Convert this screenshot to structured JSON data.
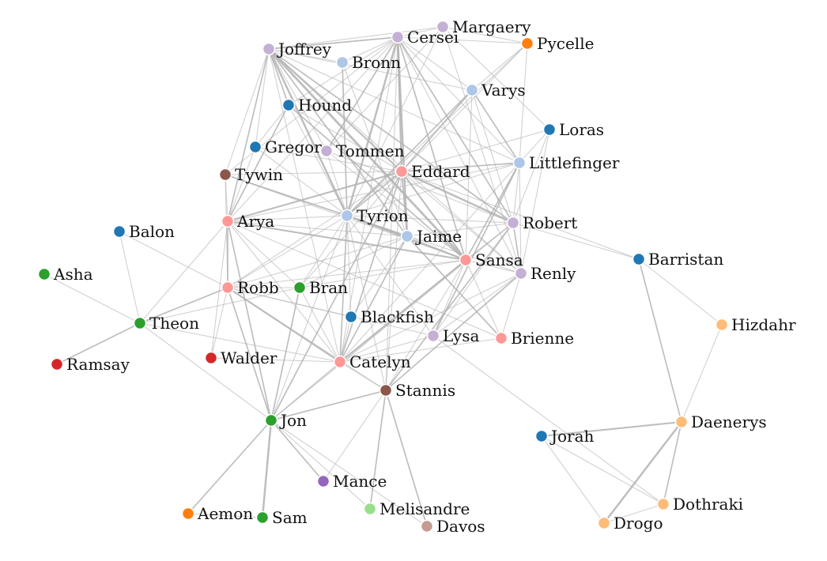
{
  "diagram": {
    "type": "force-directed network",
    "nodes": [
      {
        "id": "Margaery",
        "color": "#c5b0d5"
      },
      {
        "id": "Cersei",
        "color": "#c5b0d5"
      },
      {
        "id": "Pycelle",
        "color": "#ff7f0e"
      },
      {
        "id": "Joffrey",
        "color": "#c5b0d5"
      },
      {
        "id": "Bronn",
        "color": "#aec7e8"
      },
      {
        "id": "Varys",
        "color": "#aec7e8"
      },
      {
        "id": "Hound",
        "color": "#1f77b4"
      },
      {
        "id": "Loras",
        "color": "#1f77b4"
      },
      {
        "id": "Gregor",
        "color": "#1f77b4"
      },
      {
        "id": "Tommen",
        "color": "#c5b0d5"
      },
      {
        "id": "Littlefinger",
        "color": "#aec7e8"
      },
      {
        "id": "Tywin",
        "color": "#8c564b"
      },
      {
        "id": "Eddard",
        "color": "#ff9896"
      },
      {
        "id": "Tyrion",
        "color": "#aec7e8"
      },
      {
        "id": "Arya",
        "color": "#ff9896"
      },
      {
        "id": "Robert",
        "color": "#c5b0d5"
      },
      {
        "id": "Balon",
        "color": "#1f77b4"
      },
      {
        "id": "Jaime",
        "color": "#aec7e8"
      },
      {
        "id": "Sansa",
        "color": "#ff9896"
      },
      {
        "id": "Barristan",
        "color": "#1f77b4"
      },
      {
        "id": "Renly",
        "color": "#c5b0d5"
      },
      {
        "id": "Asha",
        "color": "#2ca02c"
      },
      {
        "id": "Robb",
        "color": "#ff9896"
      },
      {
        "id": "Bran",
        "color": "#2ca02c"
      },
      {
        "id": "Blackfish",
        "color": "#1f77b4"
      },
      {
        "id": "Theon",
        "color": "#2ca02c"
      },
      {
        "id": "Hizdahr",
        "color": "#ffbb78"
      },
      {
        "id": "Lysa",
        "color": "#c5b0d5"
      },
      {
        "id": "Brienne",
        "color": "#ff9896"
      },
      {
        "id": "Walder",
        "color": "#d62728"
      },
      {
        "id": "Catelyn",
        "color": "#ff9896"
      },
      {
        "id": "Ramsay",
        "color": "#d62728"
      },
      {
        "id": "Stannis",
        "color": "#8c564b"
      },
      {
        "id": "Daenerys",
        "color": "#ffbb78"
      },
      {
        "id": "Jon",
        "color": "#2ca02c"
      },
      {
        "id": "Jorah",
        "color": "#1f77b4"
      },
      {
        "id": "Mance",
        "color": "#9467bd"
      },
      {
        "id": "Dothraki",
        "color": "#ffbb78"
      },
      {
        "id": "Melisandre",
        "color": "#98df8a"
      },
      {
        "id": "Aemon",
        "color": "#ff7f0e"
      },
      {
        "id": "Sam",
        "color": "#2ca02c"
      },
      {
        "id": "Drogo",
        "color": "#ffbb78"
      },
      {
        "id": "Davos",
        "color": "#c49c94"
      }
    ],
    "links": [
      {
        "source": "Joffrey",
        "target": "Cersei",
        "weight": 2
      },
      {
        "source": "Cersei",
        "target": "Margaery",
        "weight": 1
      },
      {
        "source": "Cersei",
        "target": "Pycelle",
        "weight": 1
      },
      {
        "source": "Margaery",
        "target": "Pycelle",
        "weight": 1
      },
      {
        "source": "Joffrey",
        "target": "Margaery",
        "weight": 1
      },
      {
        "source": "Joffrey",
        "target": "Tyrion",
        "weight": 4
      },
      {
        "source": "Joffrey",
        "target": "Eddard",
        "weight": 3
      },
      {
        "source": "Joffrey",
        "target": "Sansa",
        "weight": 5
      },
      {
        "source": "Joffrey",
        "target": "Arya",
        "weight": 2
      },
      {
        "source": "Joffrey",
        "target": "Hound",
        "weight": 2
      },
      {
        "source": "Joffrey",
        "target": "Tywin",
        "weight": 1
      },
      {
        "source": "Joffrey",
        "target": "Robert",
        "weight": 2
      },
      {
        "source": "Joffrey",
        "target": "Jaime",
        "weight": 2
      },
      {
        "source": "Joffrey",
        "target": "Catelyn",
        "weight": 1
      },
      {
        "source": "Joffrey",
        "target": "Tommen",
        "weight": 1
      },
      {
        "source": "Joffrey",
        "target": "Renly",
        "weight": 1
      },
      {
        "source": "Joffrey",
        "target": "Littlefinger",
        "weight": 1
      },
      {
        "source": "Joffrey",
        "target": "Varys",
        "weight": 1
      },
      {
        "source": "Joffrey",
        "target": "Bronn",
        "weight": 1
      },
      {
        "source": "Joffrey",
        "target": "Gregor",
        "weight": 1
      },
      {
        "source": "Cersei",
        "target": "Tyrion",
        "weight": 4
      },
      {
        "source": "Cersei",
        "target": "Jaime",
        "weight": 4
      },
      {
        "source": "Cersei",
        "target": "Eddard",
        "weight": 3
      },
      {
        "source": "Cersei",
        "target": "Sansa",
        "weight": 2
      },
      {
        "source": "Cersei",
        "target": "Robert",
        "weight": 2
      },
      {
        "source": "Cersei",
        "target": "Tommen",
        "weight": 2
      },
      {
        "source": "Cersei",
        "target": "Varys",
        "weight": 1
      },
      {
        "source": "Cersei",
        "target": "Littlefinger",
        "weight": 1
      },
      {
        "source": "Cersei",
        "target": "Catelyn",
        "weight": 1
      },
      {
        "source": "Cersei",
        "target": "Arya",
        "weight": 1
      },
      {
        "source": "Cersei",
        "target": "Renly",
        "weight": 1
      },
      {
        "source": "Cersei",
        "target": "Stannis",
        "weight": 1
      },
      {
        "source": "Cersei",
        "target": "Bronn",
        "weight": 1
      },
      {
        "source": "Cersei",
        "target": "Tywin",
        "weight": 1
      },
      {
        "source": "Cersei",
        "target": "Hound",
        "weight": 1
      },
      {
        "source": "Margaery",
        "target": "Tommen",
        "weight": 1
      },
      {
        "source": "Margaery",
        "target": "Loras",
        "weight": 1
      },
      {
        "source": "Margaery",
        "target": "Renly",
        "weight": 1
      },
      {
        "source": "Margaery",
        "target": "Tyrion",
        "weight": 1
      },
      {
        "source": "Pycelle",
        "target": "Tyrion",
        "weight": 1
      },
      {
        "source": "Pycelle",
        "target": "Varys",
        "weight": 1
      },
      {
        "source": "Pycelle",
        "target": "Eddard",
        "weight": 1
      },
      {
        "source": "Pycelle",
        "target": "Littlefinger",
        "weight": 1
      },
      {
        "source": "Bronn",
        "target": "Tyrion",
        "weight": 2
      },
      {
        "source": "Bronn",
        "target": "Jaime",
        "weight": 1
      },
      {
        "source": "Varys",
        "target": "Tyrion",
        "weight": 2
      },
      {
        "source": "Varys",
        "target": "Eddard",
        "weight": 2
      },
      {
        "source": "Varys",
        "target": "Littlefinger",
        "weight": 2
      },
      {
        "source": "Varys",
        "target": "Robert",
        "weight": 1
      },
      {
        "source": "Varys",
        "target": "Sansa",
        "weight": 1
      },
      {
        "source": "Hound",
        "target": "Arya",
        "weight": 2
      },
      {
        "source": "Hound",
        "target": "Sansa",
        "weight": 2
      },
      {
        "source": "Hound",
        "target": "Tyrion",
        "weight": 1
      },
      {
        "source": "Hound",
        "target": "Gregor",
        "weight": 1
      },
      {
        "source": "Hound",
        "target": "Eddard",
        "weight": 1
      },
      {
        "source": "Loras",
        "target": "Renly",
        "weight": 1
      },
      {
        "source": "Loras",
        "target": "Littlefinger",
        "weight": 1
      },
      {
        "source": "Loras",
        "target": "Robert",
        "weight": 1
      },
      {
        "source": "Loras",
        "target": "Eddard",
        "weight": 1
      },
      {
        "source": "Gregor",
        "target": "Tyrion",
        "weight": 1
      },
      {
        "source": "Gregor",
        "target": "Eddard",
        "weight": 1
      },
      {
        "source": "Gregor",
        "target": "Arya",
        "weight": 1
      },
      {
        "source": "Tommen",
        "target": "Tyrion",
        "weight": 1
      },
      {
        "source": "Tommen",
        "target": "Robert",
        "weight": 1
      },
      {
        "source": "Tommen",
        "target": "Sansa",
        "weight": 1
      },
      {
        "source": "Littlefinger",
        "target": "Eddard",
        "weight": 2
      },
      {
        "source": "Littlefinger",
        "target": "Sansa",
        "weight": 2
      },
      {
        "source": "Littlefinger",
        "target": "Lysa",
        "weight": 2
      },
      {
        "source": "Littlefinger",
        "target": "Catelyn",
        "weight": 1
      },
      {
        "source": "Littlefinger",
        "target": "Tyrion",
        "weight": 1
      },
      {
        "source": "Littlefinger",
        "target": "Robert",
        "weight": 1
      },
      {
        "source": "Littlefinger",
        "target": "Renly",
        "weight": 1
      },
      {
        "source": "Littlefinger",
        "target": "Arya",
        "weight": 1
      },
      {
        "source": "Tywin",
        "target": "Tyrion",
        "weight": 2
      },
      {
        "source": "Tywin",
        "target": "Jaime",
        "weight": 1
      },
      {
        "source": "Tywin",
        "target": "Arya",
        "weight": 1
      },
      {
        "source": "Tywin",
        "target": "Eddard",
        "weight": 1
      },
      {
        "source": "Tywin",
        "target": "Robb",
        "weight": 1
      },
      {
        "source": "Tywin",
        "target": "Sansa",
        "weight": 1
      },
      {
        "source": "Eddard",
        "target": "Robert",
        "weight": 4
      },
      {
        "source": "Eddard",
        "target": "Arya",
        "weight": 3
      },
      {
        "source": "Eddard",
        "target": "Sansa",
        "weight": 3
      },
      {
        "source": "Eddard",
        "target": "Catelyn",
        "weight": 2
      },
      {
        "source": "Eddard",
        "target": "Jaime",
        "weight": 2
      },
      {
        "source": "Eddard",
        "target": "Tyrion",
        "weight": 2
      },
      {
        "source": "Eddard",
        "target": "Jon",
        "weight": 2
      },
      {
        "source": "Eddard",
        "target": "Robb",
        "weight": 1
      },
      {
        "source": "Eddard",
        "target": "Bran",
        "weight": 1
      },
      {
        "source": "Eddard",
        "target": "Renly",
        "weight": 1
      },
      {
        "source": "Eddard",
        "target": "Stannis",
        "weight": 1
      },
      {
        "source": "Eddard",
        "target": "Barristan",
        "weight": 1
      },
      {
        "source": "Tyrion",
        "target": "Jaime",
        "weight": 3
      },
      {
        "source": "Tyrion",
        "target": "Sansa",
        "weight": 3
      },
      {
        "source": "Tyrion",
        "target": "Catelyn",
        "weight": 2
      },
      {
        "source": "Tyrion",
        "target": "Robert",
        "weight": 1
      },
      {
        "source": "Tyrion",
        "target": "Arya",
        "weight": 1
      },
      {
        "source": "Tyrion",
        "target": "Bran",
        "weight": 1
      },
      {
        "source": "Tyrion",
        "target": "Jon",
        "weight": 1
      },
      {
        "source": "Tyrion",
        "target": "Stannis",
        "weight": 1
      },
      {
        "source": "Tyrion",
        "target": "Lysa",
        "weight": 1
      },
      {
        "source": "Tyrion",
        "target": "Robb",
        "weight": 1
      },
      {
        "source": "Tyrion",
        "target": "Renly",
        "weight": 1
      },
      {
        "source": "Tyrion",
        "target": "Blackfish",
        "weight": 1
      },
      {
        "source": "Arya",
        "target": "Sansa",
        "weight": 3
      },
      {
        "source": "Arya",
        "target": "Robb",
        "weight": 2
      },
      {
        "source": "Arya",
        "target": "Jon",
        "weight": 2
      },
      {
        "source": "Arya",
        "target": "Catelyn",
        "weight": 1
      },
      {
        "source": "Arya",
        "target": "Bran",
        "weight": 1
      },
      {
        "source": "Arya",
        "target": "Jaime",
        "weight": 1
      },
      {
        "source": "Arya",
        "target": "Brienne",
        "weight": 1
      },
      {
        "source": "Arya",
        "target": "Walder",
        "weight": 1
      },
      {
        "source": "Robert",
        "target": "Renly",
        "weight": 2
      },
      {
        "source": "Robert",
        "target": "Stannis",
        "weight": 2
      },
      {
        "source": "Robert",
        "target": "Jaime",
        "weight": 1
      },
      {
        "source": "Robert",
        "target": "Sansa",
        "weight": 1
      },
      {
        "source": "Robert",
        "target": "Barristan",
        "weight": 1
      },
      {
        "source": "Robert",
        "target": "Catelyn",
        "weight": 1
      },
      {
        "source": "Robert",
        "target": "Jon",
        "weight": 1
      },
      {
        "source": "Robert",
        "target": "Lysa",
        "weight": 1
      },
      {
        "source": "Jaime",
        "target": "Brienne",
        "weight": 2
      },
      {
        "source": "Jaime",
        "target": "Sansa",
        "weight": 1
      },
      {
        "source": "Jaime",
        "target": "Catelyn",
        "weight": 2
      },
      {
        "source": "Jaime",
        "target": "Robb",
        "weight": 1
      },
      {
        "source": "Jaime",
        "target": "Blackfish",
        "weight": 1
      },
      {
        "source": "Jaime",
        "target": "Bran",
        "weight": 1
      },
      {
        "source": "Sansa",
        "target": "Catelyn",
        "weight": 2
      },
      {
        "source": "Sansa",
        "target": "Lysa",
        "weight": 1
      },
      {
        "source": "Sansa",
        "target": "Robb",
        "weight": 1
      },
      {
        "source": "Sansa",
        "target": "Brienne",
        "weight": 1
      },
      {
        "source": "Sansa",
        "target": "Renly",
        "weight": 1
      },
      {
        "source": "Sansa",
        "target": "Bran",
        "weight": 1
      },
      {
        "source": "Sansa",
        "target": "Jon",
        "weight": 1
      },
      {
        "source": "Sansa",
        "target": "Stannis",
        "weight": 1
      },
      {
        "source": "Renly",
        "target": "Stannis",
        "weight": 2
      },
      {
        "source": "Renly",
        "target": "Catelyn",
        "weight": 1
      },
      {
        "source": "Renly",
        "target": "Brienne",
        "weight": 1
      },
      {
        "source": "Renly",
        "target": "Lysa",
        "weight": 1
      },
      {
        "source": "Barristan",
        "target": "Daenerys",
        "weight": 2
      },
      {
        "source": "Barristan",
        "target": "Hizdahr",
        "weight": 1
      },
      {
        "source": "Balon",
        "target": "Theon",
        "weight": 1
      },
      {
        "source": "Balon",
        "target": "Robb",
        "weight": 1
      },
      {
        "source": "Asha",
        "target": "Theon",
        "weight": 1
      },
      {
        "source": "Theon",
        "target": "Robb",
        "weight": 2
      },
      {
        "source": "Theon",
        "target": "Ramsay",
        "weight": 2
      },
      {
        "source": "Theon",
        "target": "Bran",
        "weight": 1
      },
      {
        "source": "Theon",
        "target": "Catelyn",
        "weight": 1
      },
      {
        "source": "Theon",
        "target": "Jon",
        "weight": 1
      },
      {
        "source": "Theon",
        "target": "Arya",
        "weight": 1
      },
      {
        "source": "Robb",
        "target": "Catelyn",
        "weight": 3
      },
      {
        "source": "Robb",
        "target": "Jon",
        "weight": 2
      },
      {
        "source": "Robb",
        "target": "Bran",
        "weight": 1
      },
      {
        "source": "Robb",
        "target": "Walder",
        "weight": 1
      },
      {
        "source": "Robb",
        "target": "Blackfish",
        "weight": 1
      },
      {
        "source": "Robb",
        "target": "Stannis",
        "weight": 1
      },
      {
        "source": "Robb",
        "target": "Lysa",
        "weight": 1
      },
      {
        "source": "Bran",
        "target": "Jon",
        "weight": 2
      },
      {
        "source": "Bran",
        "target": "Catelyn",
        "weight": 1
      },
      {
        "source": "Blackfish",
        "target": "Catelyn",
        "weight": 1
      },
      {
        "source": "Walder",
        "target": "Catelyn",
        "weight": 1
      },
      {
        "source": "Lysa",
        "target": "Catelyn",
        "weight": 1
      },
      {
        "source": "Brienne",
        "target": "Catelyn",
        "weight": 1
      },
      {
        "source": "Lysa",
        "target": "Dothraki",
        "weight": 1
      },
      {
        "source": "Catelyn",
        "target": "Stannis",
        "weight": 1
      },
      {
        "source": "Catelyn",
        "target": "Jon",
        "weight": 1
      },
      {
        "source": "Stannis",
        "target": "Jon",
        "weight": 2
      },
      {
        "source": "Stannis",
        "target": "Melisandre",
        "weight": 2
      },
      {
        "source": "Stannis",
        "target": "Davos",
        "weight": 2
      },
      {
        "source": "Stannis",
        "target": "Mance",
        "weight": 1
      },
      {
        "source": "Jon",
        "target": "Sam",
        "weight": 4
      },
      {
        "source": "Jon",
        "target": "Aemon",
        "weight": 2
      },
      {
        "source": "Jon",
        "target": "Mance",
        "weight": 2
      },
      {
        "source": "Jon",
        "target": "Melisandre",
        "weight": 1
      },
      {
        "source": "Jon",
        "target": "Davos",
        "weight": 1
      },
      {
        "source": "Aemon",
        "target": "Sam",
        "weight": 1
      },
      {
        "source": "Daenerys",
        "target": "Jorah",
        "weight": 3
      },
      {
        "source": "Daenerys",
        "target": "Drogo",
        "weight": 4
      },
      {
        "source": "Daenerys",
        "target": "Dothraki",
        "weight": 2
      },
      {
        "source": "Daenerys",
        "target": "Hizdahr",
        "weight": 1
      },
      {
        "source": "Jorah",
        "target": "Drogo",
        "weight": 1
      },
      {
        "source": "Jorah",
        "target": "Dothraki",
        "weight": 1
      },
      {
        "source": "Drogo",
        "target": "Dothraki",
        "weight": 1
      }
    ]
  }
}
